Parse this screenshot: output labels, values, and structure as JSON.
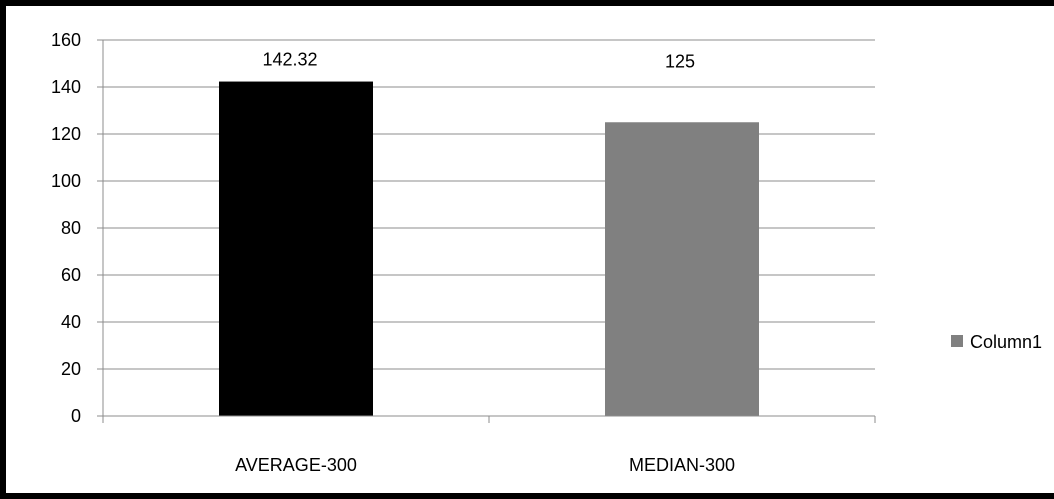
{
  "chart_data": {
    "type": "bar",
    "categories": [
      "AVERAGE-300",
      "MEDIAN-300"
    ],
    "series": [
      {
        "name": "Column1",
        "values": [
          142.32,
          125
        ],
        "value_labels": [
          "142.32",
          "125"
        ]
      }
    ],
    "bar_colors": [
      "#000000",
      "#808080"
    ],
    "legend_color": "#808080",
    "ylim": [
      0,
      160
    ],
    "yticks": [
      0,
      20,
      40,
      60,
      80,
      100,
      120,
      140,
      160
    ],
    "grid": true,
    "legend_position": "right"
  }
}
